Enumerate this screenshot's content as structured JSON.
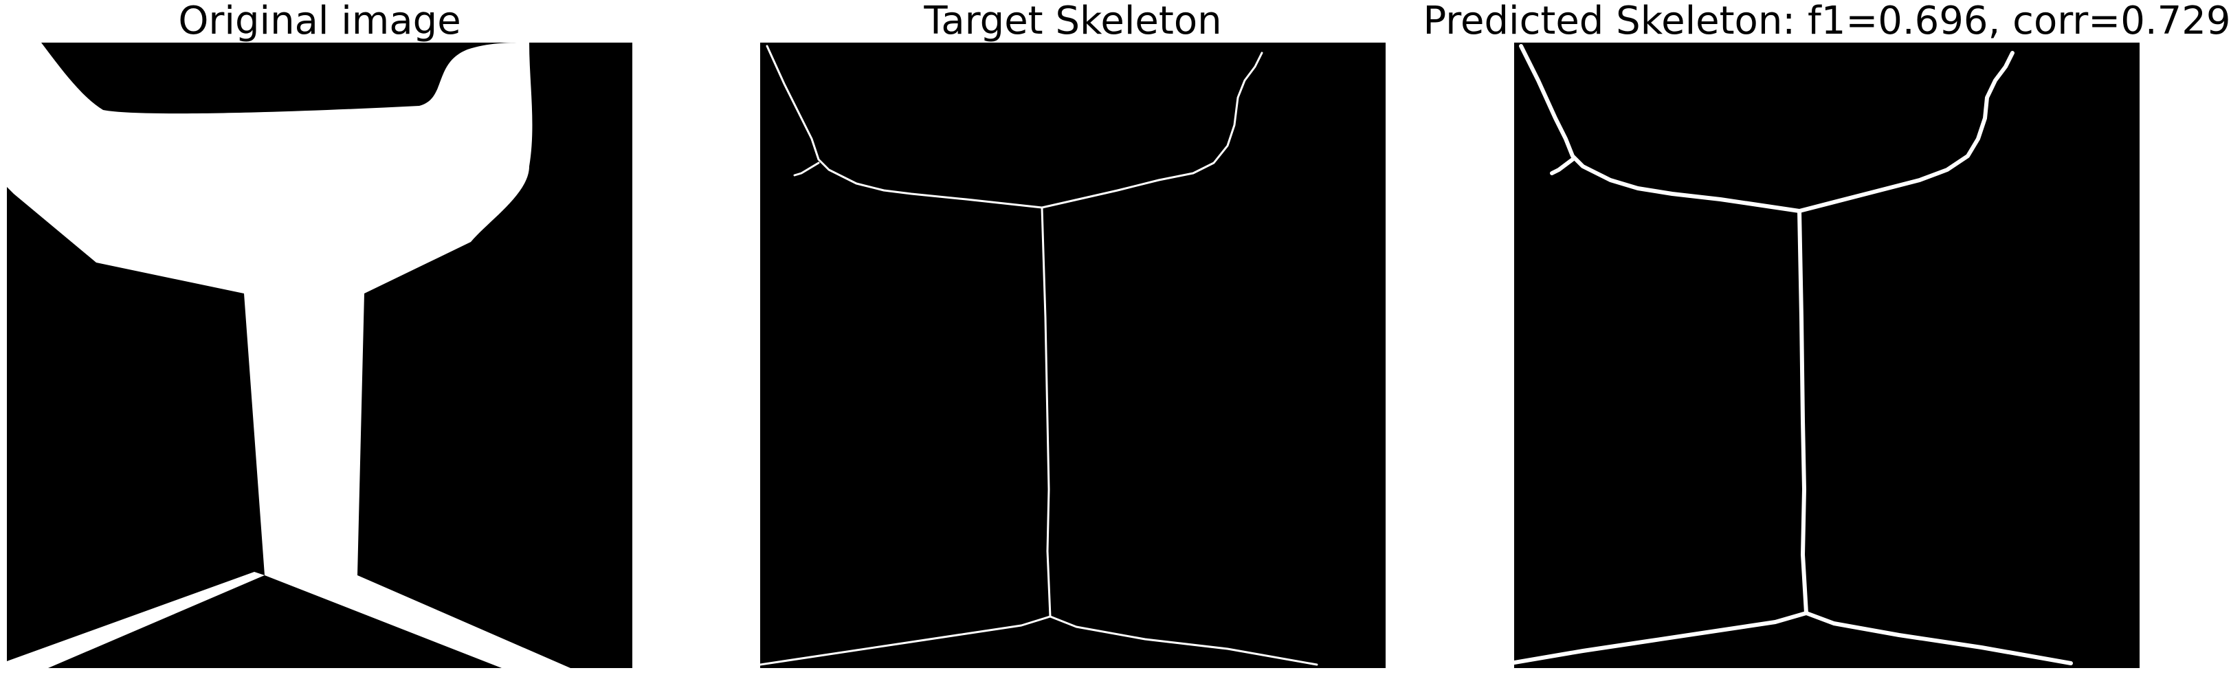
{
  "panels": [
    {
      "id": "original",
      "title": "Original image",
      "image": "binary shape: white Y-shaped glass silhouette on black"
    },
    {
      "id": "target",
      "title": "Target Skeleton",
      "image": "white skeleton lines on black"
    },
    {
      "id": "predicted",
      "title": "Predicted Skeleton: f1=0.696, corr=0.729",
      "image": "white predicted skeleton lines on black"
    }
  ],
  "colors": {
    "background": "#ffffff",
    "image_background": "#000000",
    "foreground": "#ffffff",
    "text": "#000000"
  }
}
